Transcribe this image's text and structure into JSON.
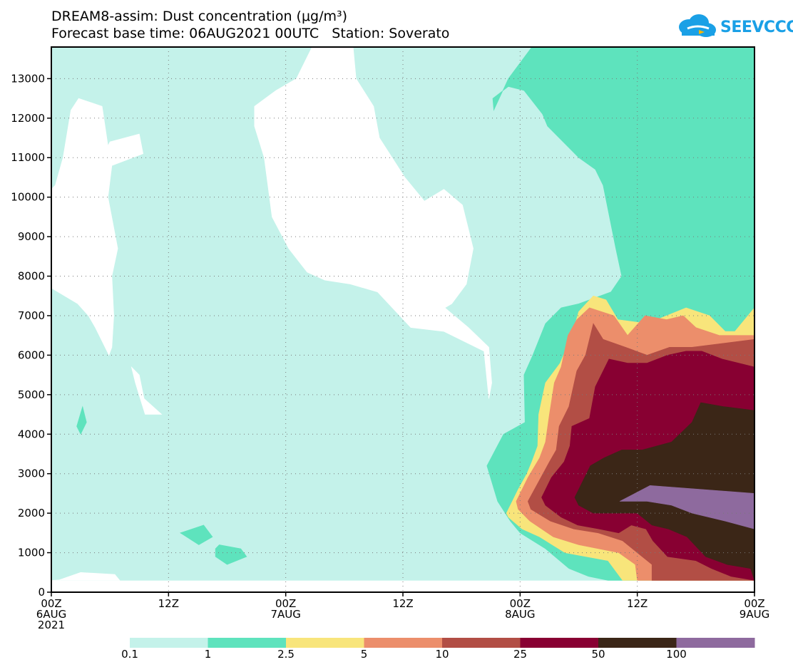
{
  "title": {
    "line1": "DREAM8-assim: Dust concentration (μg/m³)",
    "line2": "Forecast base time: 06AUG2021 00UTC   Station: Soverato"
  },
  "logo": {
    "text": "SEEVCCC"
  },
  "chart_data": {
    "type": "contour",
    "variable": "Dust concentration",
    "units": "μg/m³",
    "station": "Soverato",
    "base_time": "06AUG2021 00UTC",
    "x_range_hours": [
      0,
      72
    ],
    "ylim": [
      0,
      13800
    ],
    "y_ticks": [
      0,
      1000,
      2000,
      3000,
      4000,
      5000,
      6000,
      7000,
      8000,
      9000,
      10000,
      11000,
      12000,
      13000
    ],
    "x_ticks": [
      {
        "hour": 0,
        "line1": "00Z",
        "line2": "6AUG",
        "line3": "2021"
      },
      {
        "hour": 12,
        "line1": "12Z",
        "line2": "",
        "line3": ""
      },
      {
        "hour": 24,
        "line1": "00Z",
        "line2": "7AUG",
        "line3": ""
      },
      {
        "hour": 36,
        "line1": "12Z",
        "line2": "",
        "line3": ""
      },
      {
        "hour": 48,
        "line1": "00Z",
        "line2": "8AUG",
        "line3": ""
      },
      {
        "hour": 60,
        "line1": "12Z",
        "line2": "",
        "line3": ""
      },
      {
        "hour": 72,
        "line1": "00Z",
        "line2": "9AUG",
        "line3": ""
      }
    ],
    "grid": true,
    "levels": [
      "0.1",
      "1",
      "2.5",
      "5",
      "10",
      "25",
      "50",
      "100"
    ],
    "colors": [
      "#c4f2ea",
      "#5ee3bd",
      "#f8e57b",
      "#ec8e6b",
      "#b24e45",
      "#880032",
      "#3b2617",
      "#8e6a9e"
    ],
    "regions": [
      {
        "level": 0,
        "polys": [
          [
            [
              0,
              300
            ],
            [
              72,
              300
            ],
            [
              72,
              13800
            ],
            [
              0,
              13800
            ]
          ]
        ]
      },
      {
        "level": -1,
        "polys": [
          [
            [
              0,
              300
            ],
            [
              0.8,
              310
            ],
            [
              3,
              500
            ],
            [
              6.5,
              450
            ],
            [
              7,
              300
            ]
          ],
          [
            [
              0,
              10200
            ],
            [
              0.4,
              10300
            ],
            [
              1.2,
              11000
            ],
            [
              2,
              12200
            ],
            [
              2.8,
              12500
            ],
            [
              5.2,
              12300
            ],
            [
              5.8,
              11300
            ],
            [
              6,
              11400
            ],
            [
              9,
              11600
            ],
            [
              9.4,
              11100
            ],
            [
              6.2,
              10800
            ],
            [
              5.8,
              10000
            ],
            [
              6.8,
              8700
            ],
            [
              6.2,
              8000
            ],
            [
              6.4,
              7000
            ],
            [
              6.2,
              6200
            ],
            [
              5.9,
              6000
            ],
            [
              4.5,
              6700
            ],
            [
              3.8,
              7000
            ],
            [
              2.7,
              7300
            ],
            [
              0,
              7700
            ]
          ],
          [
            [
              8.2,
              5700
            ],
            [
              9,
              5500
            ],
            [
              9.5,
              4900
            ],
            [
              11.3,
              4500
            ],
            [
              9.6,
              4500
            ],
            [
              9.1,
              4900
            ],
            [
              8.6,
              5300
            ]
          ],
          [
            [
              20.8,
              12300
            ],
            [
              23,
              12700
            ],
            [
              25.1,
              13000
            ],
            [
              26.7,
              13800
            ],
            [
              30.9,
              13800
            ],
            [
              31.2,
              13000
            ],
            [
              33,
              12300
            ],
            [
              33.6,
              11500
            ],
            [
              36.2,
              10500
            ],
            [
              38.2,
              9900
            ],
            [
              40.2,
              10200
            ],
            [
              42.1,
              9800
            ],
            [
              43.2,
              8700
            ],
            [
              42.5,
              7800
            ],
            [
              41,
              7300
            ],
            [
              40.3,
              7200
            ],
            [
              42.7,
              6700
            ],
            [
              44.8,
              6200
            ],
            [
              45.1,
              5300
            ],
            [
              44.8,
              4900
            ],
            [
              44.3,
              6100
            ],
            [
              40.2,
              6600
            ],
            [
              36.8,
              6700
            ],
            [
              33.4,
              7600
            ],
            [
              30.6,
              7800
            ],
            [
              28,
              7900
            ],
            [
              26.2,
              8100
            ],
            [
              24.3,
              8700
            ],
            [
              22.6,
              9500
            ],
            [
              21.8,
              11000
            ],
            [
              20.8,
              11800
            ]
          ]
        ]
      },
      {
        "level": 1,
        "polys": [
          [
            [
              2.6,
              4200
            ],
            [
              3.2,
              4700
            ],
            [
              3.6,
              4300
            ],
            [
              3,
              4000
            ]
          ],
          [
            [
              13.2,
              1500
            ],
            [
              15.6,
              1700
            ],
            [
              16.5,
              1400
            ],
            [
              15.1,
              1200
            ]
          ],
          [
            [
              16.8,
              1100
            ],
            [
              17.2,
              1200
            ],
            [
              19.4,
              1100
            ],
            [
              20,
              900
            ],
            [
              18,
              700
            ],
            [
              16.8,
              900
            ]
          ],
          [
            [
              45.3,
              12200
            ],
            [
              46.8,
              13000
            ],
            [
              49.2,
              13800
            ],
            [
              72,
              13800
            ],
            [
              72,
              300
            ],
            [
              57,
              300
            ],
            [
              55,
              400
            ],
            [
              53,
              600
            ],
            [
              50.6,
              1100
            ],
            [
              48,
              1500
            ],
            [
              47,
              1800
            ],
            [
              45.7,
              2300
            ],
            [
              44.6,
              3200
            ],
            [
              46.3,
              4000
            ],
            [
              48.5,
              4300
            ],
            [
              48.4,
              5500
            ],
            [
              49.3,
              6000
            ],
            [
              50.6,
              6800
            ],
            [
              52.2,
              7200
            ],
            [
              54,
              7300
            ],
            [
              57.3,
              7600
            ],
            [
              58.4,
              8000
            ],
            [
              57.8,
              8700
            ],
            [
              56.5,
              10300
            ],
            [
              55.7,
              10700
            ],
            [
              54,
              11000
            ],
            [
              50.8,
              11800
            ],
            [
              50.3,
              12100
            ],
            [
              48.4,
              12700
            ],
            [
              46.8,
              12800
            ],
            [
              45.2,
              12500
            ]
          ]
        ]
      },
      {
        "level": 2,
        "polys": [
          [
            [
              46.6,
              2000
            ],
            [
              47.8,
              2600
            ],
            [
              48.7,
              3000
            ],
            [
              49.2,
              3300
            ],
            [
              49.8,
              3700
            ],
            [
              49.9,
              4500
            ],
            [
              50.6,
              5300
            ],
            [
              52.1,
              5800
            ],
            [
              53.3,
              6500
            ],
            [
              54,
              7100
            ],
            [
              55.5,
              7500
            ],
            [
              56.8,
              7400
            ],
            [
              58,
              6900
            ],
            [
              61,
              6800
            ],
            [
              63,
              7000
            ],
            [
              65,
              7200
            ],
            [
              67.4,
              7000
            ],
            [
              69,
              6600
            ],
            [
              70,
              6600
            ],
            [
              72,
              7200
            ],
            [
              72,
              300
            ],
            [
              58.5,
              300
            ],
            [
              57,
              800
            ],
            [
              52.6,
              1000
            ],
            [
              50,
              1400
            ],
            [
              48.2,
              1600
            ],
            [
              46.8,
              1900
            ]
          ]
        ]
      },
      {
        "level": 3,
        "polys": [
          [
            [
              47.6,
              2300
            ],
            [
              48.8,
              2900
            ],
            [
              50,
              3400
            ],
            [
              50.6,
              3800
            ],
            [
              51,
              4500
            ],
            [
              51.5,
              5300
            ],
            [
              52.2,
              5700
            ],
            [
              52.9,
              6500
            ],
            [
              53.8,
              6900
            ],
            [
              55.1,
              7200
            ],
            [
              57.6,
              7000
            ],
            [
              59,
              6500
            ],
            [
              60.8,
              7000
            ],
            [
              63,
              6900
            ],
            [
              64.7,
              7000
            ],
            [
              66,
              6700
            ],
            [
              68.4,
              6500
            ],
            [
              72,
              6500
            ],
            [
              72,
              300
            ],
            [
              60,
              300
            ],
            [
              59.8,
              700
            ],
            [
              58.1,
              1000
            ],
            [
              54,
              1200
            ],
            [
              51.4,
              1400
            ],
            [
              49,
              1800
            ],
            [
              47.8,
              2100
            ]
          ]
        ]
      },
      {
        "level": 4,
        "polys": [
          [
            [
              48.8,
              2300
            ],
            [
              49.9,
              2800
            ],
            [
              51,
              3300
            ],
            [
              51.7,
              3600
            ],
            [
              52,
              4200
            ],
            [
              53,
              4700
            ],
            [
              53.8,
              5600
            ],
            [
              54.7,
              6000
            ],
            [
              55.5,
              6800
            ],
            [
              56.5,
              6400
            ],
            [
              58.8,
              6200
            ],
            [
              61,
              6000
            ],
            [
              63.3,
              6200
            ],
            [
              65.6,
              6200
            ],
            [
              72,
              6400
            ],
            [
              72,
              300
            ],
            [
              61.5,
              300
            ],
            [
              61.5,
              700
            ],
            [
              60,
              1000
            ],
            [
              58.5,
              1300
            ],
            [
              56,
              1500
            ],
            [
              53.5,
              1600
            ],
            [
              51.1,
              1800
            ],
            [
              49.1,
              2100
            ]
          ]
        ]
      },
      {
        "level": 5,
        "polys": [
          [
            [
              50.2,
              2400
            ],
            [
              51.2,
              2900
            ],
            [
              52.5,
              3300
            ],
            [
              53.1,
              3700
            ],
            [
              53.3,
              4200
            ],
            [
              55.1,
              4400
            ],
            [
              55.7,
              5200
            ],
            [
              57.1,
              5900
            ],
            [
              59,
              5800
            ],
            [
              61,
              5800
            ],
            [
              63.1,
              6000
            ],
            [
              65,
              6100
            ],
            [
              66.6,
              6100
            ],
            [
              68.7,
              5900
            ],
            [
              72,
              5700
            ],
            [
              72,
              300
            ],
            [
              69.6,
              400
            ],
            [
              67.6,
              600
            ],
            [
              66,
              800
            ],
            [
              63.1,
              900
            ],
            [
              61.6,
              1300
            ],
            [
              60.9,
              1600
            ],
            [
              59.4,
              1700
            ],
            [
              58.1,
              1500
            ],
            [
              56.1,
              1600
            ],
            [
              53.9,
              1700
            ],
            [
              52.2,
              1900
            ],
            [
              50.6,
              2200
            ]
          ]
        ]
      },
      {
        "level": 6,
        "polys": [
          [
            [
              53.6,
              2400
            ],
            [
              55.2,
              3200
            ],
            [
              56.6,
              3400
            ],
            [
              58.4,
              3600
            ],
            [
              60.5,
              3600
            ],
            [
              63.5,
              3800
            ],
            [
              65.6,
              4300
            ],
            [
              66.5,
              4800
            ],
            [
              68.8,
              4700
            ],
            [
              72,
              4600
            ],
            [
              72,
              300
            ],
            [
              71.6,
              600
            ],
            [
              69.2,
              700
            ],
            [
              67,
              900
            ],
            [
              65.1,
              1400
            ],
            [
              63.2,
              1600
            ],
            [
              61.5,
              1700
            ],
            [
              60,
              2000
            ],
            [
              57.5,
              2000
            ],
            [
              55.5,
              2000
            ],
            [
              54,
              2200
            ]
          ]
        ]
      },
      {
        "level": 7,
        "polys": [
          [
            [
              58.2,
              2300
            ],
            [
              61.3,
              2700
            ],
            [
              72,
              2500
            ],
            [
              72,
              1600
            ],
            [
              69,
              1800
            ],
            [
              65.6,
              2000
            ],
            [
              63.5,
              2200
            ],
            [
              61,
              2300
            ]
          ]
        ]
      }
    ],
    "colorbar": {
      "labels": [
        "0.1",
        "1",
        "2.5",
        "5",
        "10",
        "25",
        "50",
        "100"
      ]
    }
  }
}
